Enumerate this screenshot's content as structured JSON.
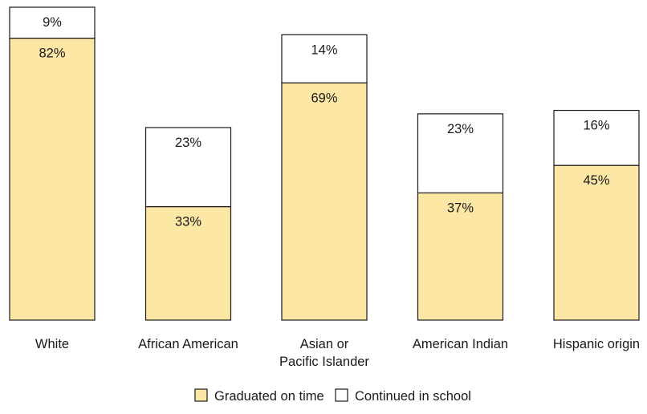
{
  "chart_data": {
    "type": "bar",
    "stacked": true,
    "categories": [
      [
        "White"
      ],
      [
        "African  American"
      ],
      [
        "Asian or",
        "Pacific Islander"
      ],
      [
        "American Indian"
      ],
      [
        "Hispanic origin"
      ]
    ],
    "series": [
      {
        "name": "Graduated on time",
        "values": [
          82,
          33,
          69,
          37,
          45
        ],
        "labels": [
          "82%",
          "33%",
          "69%",
          "37%",
          "45%"
        ],
        "color": "#fde7a4"
      },
      {
        "name": "Continued in school",
        "values": [
          9,
          23,
          14,
          23,
          16
        ],
        "labels": [
          "9%",
          "23%",
          "14%",
          "23%",
          "16%"
        ],
        "color": "#ffffff"
      }
    ],
    "ylim": [
      0,
      91
    ],
    "grid": false,
    "legend_position": "bottom-center",
    "outline_color": "#1a1a1a"
  }
}
